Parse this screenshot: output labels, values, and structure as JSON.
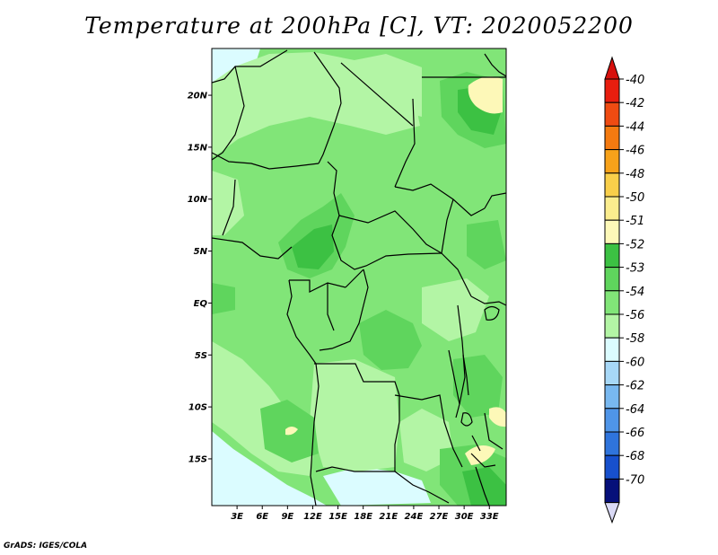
{
  "title": "Temperature at 200hPa [C], VT: 2020052200",
  "credit": "GrADS: IGES/COLA",
  "map": {
    "lat_ticks": [
      "20N",
      "15N",
      "10N",
      "5N",
      "EQ",
      "5S",
      "10S",
      "15S"
    ],
    "lon_ticks": [
      "3E",
      "6E",
      "9E",
      "12E",
      "15E",
      "18E",
      "21E",
      "24E",
      "27E",
      "30E",
      "33E"
    ],
    "lat_range": [
      -19.5,
      24.5
    ],
    "lon_range": [
      0,
      35
    ]
  },
  "colorbar": {
    "levels": [
      {
        "label": "-40",
        "color": "#e81e0f"
      },
      {
        "label": "-42",
        "color": "#ef4b12"
      },
      {
        "label": "-44",
        "color": "#f47a10"
      },
      {
        "label": "-46",
        "color": "#f7a21a"
      },
      {
        "label": "-48",
        "color": "#f9cf4a"
      },
      {
        "label": "-50",
        "color": "#fbed8e"
      },
      {
        "label": "-51",
        "color": "#fdf8b8"
      },
      {
        "label": "-52",
        "color": "#3cc143"
      },
      {
        "label": "-53",
        "color": "#5fd55d"
      },
      {
        "label": "-54",
        "color": "#81e578"
      },
      {
        "label": "-56",
        "color": "#b3f5a5"
      },
      {
        "label": "-58",
        "color": "#dbfcff"
      },
      {
        "label": "-60",
        "color": "#a7d8f7"
      },
      {
        "label": "-62",
        "color": "#78b8f0"
      },
      {
        "label": "-64",
        "color": "#4f95e8"
      },
      {
        "label": "-66",
        "color": "#2f74dc"
      },
      {
        "label": "-68",
        "color": "#1750cd"
      },
      {
        "label": "-70",
        "color": "#0a2ba8"
      }
    ],
    "top_arrow_color": "#d7100d",
    "bottom_arrow_color": "#d9d9f5",
    "bottom_extra_color": "#06107a"
  },
  "field_colors": {
    "base": "#81e578",
    "light": "#b3f5a5",
    "pale": "#dbfcff",
    "dark": "#5fd55d",
    "darkest": "#3cc143",
    "warm": "#fdf8b8"
  }
}
